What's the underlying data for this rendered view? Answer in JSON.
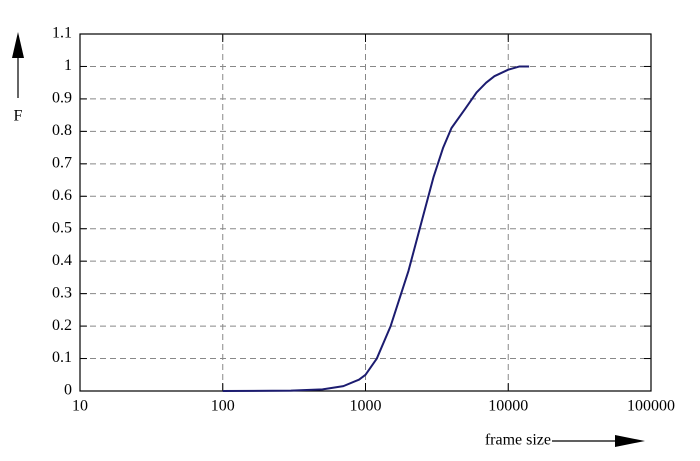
{
  "chart_data": {
    "type": "line",
    "x_label": "frame size",
    "y_label": "F",
    "x": [
      100,
      300,
      500,
      700,
      900,
      1000,
      1200,
      1500,
      2000,
      2500,
      3000,
      3500,
      4000,
      5000,
      6000,
      7000,
      8000,
      10000,
      12000,
      14000
    ],
    "values": [
      0,
      0.001,
      0.005,
      0.015,
      0.035,
      0.05,
      0.1,
      0.2,
      0.37,
      0.53,
      0.66,
      0.75,
      0.81,
      0.87,
      0.92,
      0.95,
      0.97,
      0.99,
      1.0,
      1.0
    ],
    "color": "#1c1c70",
    "xscale": "log",
    "xlim": [
      10,
      100000
    ],
    "xticks": [
      10,
      100,
      1000,
      10000,
      100000
    ],
    "ylim": [
      0,
      1.1
    ],
    "yticks": [
      0,
      0.1,
      0.2,
      0.3,
      0.4,
      0.5,
      0.6,
      0.7,
      0.8,
      0.9,
      1,
      1.1
    ],
    "grid": true
  }
}
